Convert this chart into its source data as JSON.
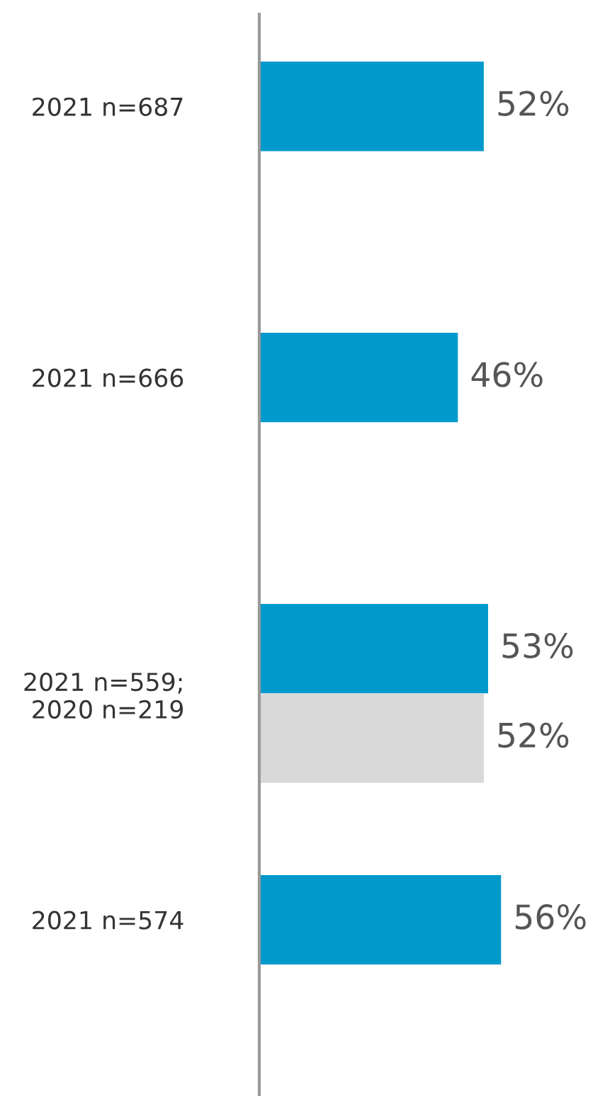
{
  "chart_data": {
    "type": "bar",
    "orientation": "horizontal",
    "tick_labels": "y",
    "categories": [
      "2021 n=687",
      "2021 n=666",
      "2021 n=559;\n2020 n=219",
      "2021 n=574"
    ],
    "series": [
      {
        "color": "#0099cc",
        "values": [
          52,
          46,
          53,
          56
        ],
        "value_labels": [
          "52%",
          "46%",
          "53%",
          "56%"
        ]
      },
      {
        "color": "#d9d9d9",
        "values": [
          null,
          null,
          52,
          null
        ],
        "value_labels": [
          null,
          null,
          "52%",
          null
        ]
      }
    ]
  }
}
